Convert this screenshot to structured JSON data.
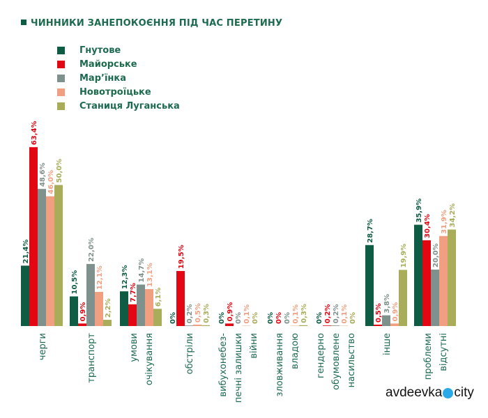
{
  "chart_data": {
    "type": "bar",
    "title": "ЧИННИКИ ЗАНЕПОКОЄННЯ ПІД ЧАС ПЕРЕТИНУ",
    "xlabel": "",
    "ylabel": "",
    "ylim": [
      0,
      70
    ],
    "grid": false,
    "legend_placement": "top-left",
    "categories": [
      [
        "черги"
      ],
      [
        "транспорт"
      ],
      [
        "умови",
        "очікування"
      ],
      [
        "обстріли"
      ],
      [
        "вибухонебез-",
        "печні залишки",
        "війни"
      ],
      [
        "зловживання",
        "владою"
      ],
      [
        "гендерно",
        "обумовлене",
        "насильство"
      ],
      [
        "інше"
      ],
      [
        "проблеми",
        "відсутні"
      ]
    ],
    "series": [
      {
        "name": "Гнутове",
        "color": "#0e5c44",
        "values": [
          21.4,
          10.5,
          12.3,
          0,
          0,
          0,
          0,
          28.7,
          35.9
        ]
      },
      {
        "name": "Майорське",
        "color": "#e30613",
        "values": [
          63.4,
          0.9,
          7.7,
          19.5,
          0.9,
          0,
          0.2,
          0.5,
          30.4
        ]
      },
      {
        "name": "Мар’їнка",
        "color": "#7f918c",
        "values": [
          48.6,
          22.0,
          14.7,
          0.2,
          0,
          0,
          0.2,
          3.8,
          20.0
        ]
      },
      {
        "name": "Новотроїцьке",
        "color": "#f0a081",
        "values": [
          46.0,
          12.1,
          13.1,
          0.5,
          0.1,
          0.1,
          0.1,
          0.9,
          31.9
        ]
      },
      {
        "name": "Станиця Луганська",
        "color": "#a9ad5a",
        "values": [
          50.0,
          2.2,
          6.1,
          0.3,
          0,
          0.3,
          0,
          19.9,
          34.2
        ]
      }
    ]
  },
  "logo": {
    "left": "avdeevka",
    "right": "city"
  }
}
